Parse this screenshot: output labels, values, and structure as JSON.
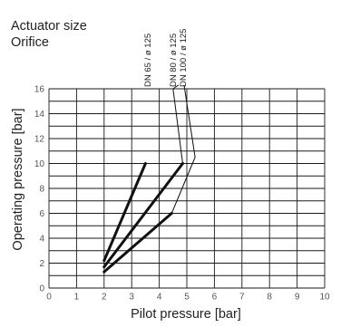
{
  "header": {
    "line1": "Actuator size",
    "line2": "Orifice"
  },
  "chart_data": {
    "type": "line",
    "xlabel": "Pilot pressure [bar]",
    "ylabel": "Operating pressure [bar]",
    "xlim": [
      0,
      10
    ],
    "ylim": [
      0,
      16
    ],
    "x_ticks": [
      0,
      1,
      2,
      3,
      4,
      5,
      6,
      7,
      8,
      9,
      10
    ],
    "y_ticks": [
      0,
      2,
      4,
      6,
      8,
      10,
      12,
      14,
      16
    ],
    "grid": true,
    "series": [
      {
        "name": "DN 65 / ø 125",
        "points": [
          [
            2.0,
            2.2
          ],
          [
            3.5,
            10.0
          ]
        ],
        "style": "thick"
      },
      {
        "name": "DN 80 / ø 125",
        "points": [
          [
            2.0,
            1.7
          ],
          [
            4.85,
            10.0
          ]
        ],
        "leader": [
          [
            4.5,
            16.0
          ],
          [
            4.7,
            16.3
          ],
          [
            4.7,
            19.0
          ]
        ],
        "style": "thick"
      },
      {
        "name": "DN 100 / ø 125",
        "points": [
          [
            2.0,
            1.3
          ],
          [
            4.45,
            6.0
          ]
        ],
        "leader": [
          [
            5.3,
            10.5
          ],
          [
            4.9,
            16.3
          ],
          [
            4.9,
            19.0
          ]
        ],
        "style": "thick+thin"
      }
    ],
    "colors": {
      "line": "#111111",
      "grid": "#1a1a1a",
      "text": "#222222"
    }
  }
}
